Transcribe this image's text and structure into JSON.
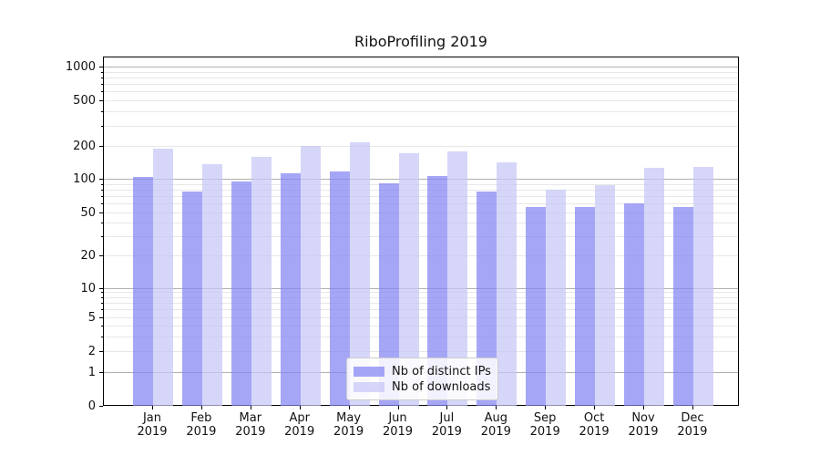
{
  "title": "RiboProfiling 2019",
  "legend": {
    "items": [
      {
        "label": "Nb of distinct IPs",
        "color": "#8383f4"
      },
      {
        "label": "Nb of downloads",
        "color": "#c6c6f6"
      }
    ],
    "position": "lower center"
  },
  "chart_data": {
    "type": "bar",
    "title": "RiboProfiling 2019",
    "categories": [
      "Jan 2019",
      "Feb 2019",
      "Mar 2019",
      "Apr 2019",
      "May 2019",
      "Jun 2019",
      "Jul 2019",
      "Aug 2019",
      "Sep 2019",
      "Oct 2019",
      "Nov 2019",
      "Dec 2019"
    ],
    "series": [
      {
        "name": "Nb of distinct IPs",
        "color": "#8383f4",
        "values": [
          105,
          78,
          96,
          114,
          118,
          92,
          108,
          78,
          57,
          57,
          61,
          57
        ]
      },
      {
        "name": "Nb of downloads",
        "color": "#c6c6f6",
        "values": [
          192,
          140,
          162,
          205,
          220,
          175,
          180,
          145,
          82,
          90,
          128,
          132
        ]
      }
    ],
    "xlabel": "",
    "ylabel": "",
    "yscale": "symlog",
    "yticks": [
      0,
      1,
      2,
      5,
      10,
      20,
      50,
      100,
      200,
      500,
      1000
    ],
    "ytick_labels": [
      "0",
      "1",
      "2",
      "5",
      "10",
      "20",
      "50",
      "100",
      "200",
      "500",
      "1000"
    ],
    "major_grid_values": [
      1,
      10,
      100,
      1000
    ],
    "minor_grid_values": [
      2,
      3,
      4,
      5,
      6,
      7,
      8,
      9,
      20,
      30,
      40,
      50,
      60,
      70,
      80,
      90,
      200,
      300,
      400,
      500,
      600,
      700,
      800,
      900
    ],
    "ylim": [
      0,
      1200
    ],
    "grid": true,
    "legend_position": "lower center",
    "grid_major_color": "#b0b0b0",
    "grid_minor_color": "#e7e7e7"
  }
}
